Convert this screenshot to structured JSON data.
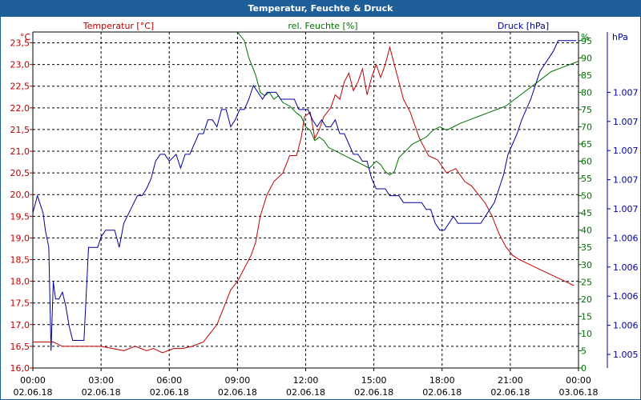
{
  "window": {
    "title": "Temperatur, Feuchte & Druck"
  },
  "colors": {
    "title_bg": "#1f5f99",
    "temperature": "#c00000",
    "humidity": "#007000",
    "pressure": "#000099",
    "grid": "#000000",
    "axis_text": "#000000"
  },
  "chart_data": {
    "type": "line",
    "grid": true,
    "x_ticks": [
      {
        "time": "00:00",
        "date": "02.06.18"
      },
      {
        "time": "03:00",
        "date": "02.06.18"
      },
      {
        "time": "06:00",
        "date": "02.06.18"
      },
      {
        "time": "09:00",
        "date": "02.06.18"
      },
      {
        "time": "12:00",
        "date": "02.06.18"
      },
      {
        "time": "15:00",
        "date": "02.06.18"
      },
      {
        "time": "18:00",
        "date": "02.06.18"
      },
      {
        "time": "21:00",
        "date": "02.06.18"
      },
      {
        "time": "00:00",
        "date": "03.06.18"
      }
    ],
    "xlim": [
      0,
      24
    ],
    "axes": {
      "temperature": {
        "header": "Temperatur [°C]",
        "unit": "°C",
        "ylim": [
          16.0,
          23.75
        ],
        "ticks": [
          "16,0",
          "16,5",
          "17,0",
          "17,5",
          "18,0",
          "18,5",
          "19,0",
          "19,5",
          "20,0",
          "20,5",
          "21,0",
          "21,5",
          "22,0",
          "22,5",
          "23,0",
          "23,5"
        ]
      },
      "humidity": {
        "header": "rel. Feuchte [%]",
        "unit": "%",
        "ylim": [
          0,
          97.5
        ],
        "ticks": [
          "0",
          "5",
          "10",
          "15",
          "20",
          "25",
          "30",
          "35",
          "40",
          "45",
          "50",
          "55",
          "60",
          "65",
          "70",
          "75",
          "80",
          "85",
          "90",
          "95"
        ]
      },
      "pressure": {
        "header": "Druck [hPa]",
        "unit": "hPa",
        "ticks": [
          "1.005",
          "1.006",
          "1.006",
          "1.006",
          "1.006",
          "1.007",
          "1.007",
          "1.007",
          "1.007",
          "1.007"
        ]
      }
    },
    "series": [
      {
        "name": "Temperatur",
        "axis": "temperature",
        "hours": [
          0,
          0.5,
          0.9,
          1.3,
          1.7,
          2.1,
          2.5,
          3.0,
          3.5,
          4.0,
          4.5,
          5.0,
          5.3,
          5.7,
          6.2,
          6.6,
          7.0,
          7.5,
          7.8,
          8.1,
          8.4,
          8.7,
          9.0,
          9.3,
          9.6,
          9.8,
          10.0,
          10.3,
          10.6,
          11.0,
          11.3,
          11.6,
          11.8,
          11.95,
          12.2,
          12.4,
          12.6,
          12.8,
          13.1,
          13.3,
          13.5,
          13.7,
          13.9,
          14.1,
          14.3,
          14.5,
          14.7,
          14.9,
          15.1,
          15.3,
          15.5,
          15.7,
          15.85,
          16.05,
          16.3,
          16.6,
          17.0,
          17.4,
          17.8,
          18.2,
          18.6,
          19.0,
          19.3,
          19.6,
          19.9,
          20.2,
          20.5,
          20.8,
          21.1,
          21.4,
          21.8,
          22.2,
          22.6,
          23.0,
          23.4,
          23.8
        ],
        "values": [
          16.6,
          16.6,
          16.6,
          16.5,
          16.5,
          16.5,
          16.5,
          16.5,
          16.45,
          16.4,
          16.5,
          16.4,
          16.45,
          16.35,
          16.45,
          16.45,
          16.5,
          16.6,
          16.8,
          17.0,
          17.4,
          17.8,
          18.0,
          18.3,
          18.6,
          18.9,
          19.5,
          20.0,
          20.3,
          20.5,
          20.9,
          20.9,
          21.3,
          21.8,
          21.9,
          21.3,
          21.5,
          21.8,
          22.0,
          22.3,
          22.2,
          22.6,
          22.8,
          22.4,
          22.6,
          22.9,
          22.3,
          22.7,
          23.0,
          22.7,
          23.0,
          23.4,
          23.1,
          22.7,
          22.2,
          21.9,
          21.3,
          20.9,
          20.8,
          20.5,
          20.6,
          20.3,
          20.2,
          20.0,
          19.8,
          19.5,
          19.1,
          18.8,
          18.6,
          18.5,
          18.4,
          18.3,
          18.2,
          18.1,
          18.0,
          17.9
        ]
      },
      {
        "name": "rel. Feuchte",
        "axis": "humidity",
        "hours": [
          9.0,
          9.3,
          9.5,
          9.8,
          10.0,
          10.2,
          10.4,
          10.6,
          10.8,
          11.0,
          11.3,
          11.6,
          11.8,
          12.0,
          12.2,
          12.4,
          12.6,
          12.8,
          13.0,
          13.3,
          13.6,
          13.9,
          14.2,
          14.5,
          14.8,
          15.1,
          15.3,
          15.5,
          15.7,
          15.9,
          16.1,
          16.4,
          16.7,
          17.0,
          17.3,
          17.6,
          17.9,
          18.2,
          18.5,
          18.8,
          19.2,
          19.6,
          20.0,
          20.4,
          20.8,
          21.2,
          21.6,
          22.0,
          22.4,
          22.8,
          23.2,
          23.6,
          24.0
        ],
        "values": [
          97.5,
          95,
          90,
          85,
          80,
          79,
          80,
          78,
          79,
          77,
          76,
          74,
          73,
          70,
          69,
          66,
          67,
          66,
          64,
          63,
          62,
          61,
          60,
          59,
          58,
          60,
          59,
          57,
          56,
          57,
          61,
          63,
          65,
          66,
          67,
          69,
          70,
          69,
          70,
          71,
          72,
          73,
          74,
          75,
          76,
          78,
          80,
          82,
          84,
          86,
          87,
          88,
          89
        ]
      },
      {
        "name": "Druck",
        "axis": "pressure",
        "hours": [
          0,
          0.2,
          0.3,
          0.45,
          0.55,
          0.7,
          0.8,
          0.9,
          1.0,
          1.15,
          1.3,
          1.45,
          1.6,
          1.75,
          1.9,
          2.05,
          2.25,
          2.45,
          2.65,
          2.85,
          3.0,
          3.2,
          3.4,
          3.6,
          3.8,
          4.0,
          4.3,
          4.6,
          4.8,
          5.0,
          5.2,
          5.4,
          5.6,
          5.8,
          6.0,
          6.3,
          6.5,
          6.7,
          6.9,
          7.1,
          7.3,
          7.5,
          7.7,
          7.9,
          8.1,
          8.3,
          8.5,
          8.7,
          8.9,
          9.1,
          9.3,
          9.5,
          9.7,
          9.9,
          10.1,
          10.3,
          10.5,
          10.7,
          10.9,
          11.1,
          11.3,
          11.5,
          11.7,
          11.9,
          12.1,
          12.3,
          12.5,
          12.7,
          12.9,
          13.1,
          13.3,
          13.5,
          13.7,
          13.9,
          14.1,
          14.3,
          14.5,
          14.7,
          14.9,
          15.1,
          15.3,
          15.5,
          15.7,
          15.9,
          16.1,
          16.3,
          16.5,
          16.7,
          16.9,
          17.1,
          17.3,
          17.5,
          17.7,
          17.9,
          18.1,
          18.3,
          18.5,
          18.7,
          18.9,
          19.1,
          19.3,
          19.5,
          19.7,
          19.9,
          20.1,
          20.3,
          20.5,
          20.7,
          20.9,
          21.1,
          21.3,
          21.5,
          21.7,
          21.9,
          22.1,
          22.3,
          22.5,
          22.7,
          22.9,
          23.1,
          23.3,
          23.5,
          23.7,
          23.9
        ],
        "values": [
          45,
          50,
          48,
          45,
          40,
          35,
          5,
          25,
          20,
          20,
          22,
          18,
          12,
          8,
          8,
          8,
          8,
          35,
          35,
          35,
          38,
          40,
          40,
          40,
          35,
          42,
          46,
          50,
          50,
          52,
          55,
          60,
          62,
          62,
          60,
          62,
          58,
          62,
          62,
          65,
          68,
          68,
          72,
          72,
          70,
          75,
          75,
          70,
          72,
          75,
          75,
          78,
          82,
          80,
          78,
          80,
          80,
          80,
          78,
          78,
          78,
          78,
          75,
          75,
          75,
          72,
          70,
          72,
          70,
          70,
          72,
          68,
          68,
          65,
          62,
          62,
          60,
          60,
          55,
          52,
          52,
          52,
          50,
          50,
          50,
          48,
          48,
          48,
          48,
          48,
          46,
          46,
          42,
          40,
          40,
          42,
          44,
          42,
          42,
          42,
          42,
          42,
          42,
          44,
          46,
          48,
          52,
          56,
          62,
          65,
          68,
          72,
          75,
          78,
          82,
          86,
          88,
          90,
          92,
          95,
          95,
          95,
          95,
          95
        ]
      }
    ]
  }
}
